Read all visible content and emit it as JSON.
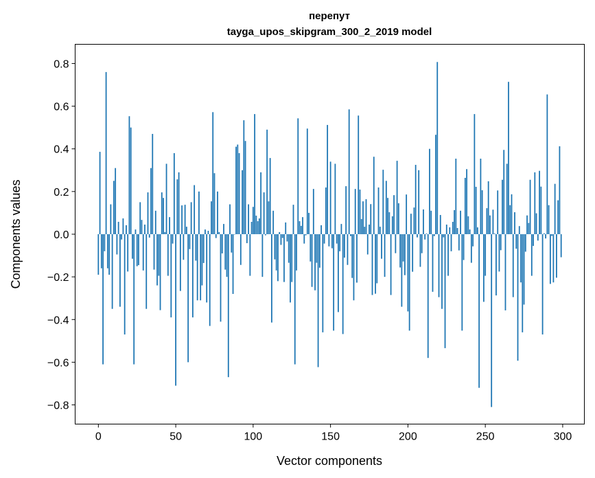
{
  "chart_data": {
    "type": "bar",
    "title": "перепут",
    "subtitle": "tayga_upos_skipgram_300_2_2019 model",
    "xlabel": "Vector components",
    "ylabel": "Components values",
    "xlim": [
      -15,
      314
    ],
    "ylim": [
      -0.89,
      0.89
    ],
    "xticks": [
      0,
      50,
      100,
      150,
      200,
      250,
      300
    ],
    "xtick_labels": [
      "0",
      "50",
      "100",
      "150",
      "200",
      "250",
      "300"
    ],
    "yticks": [
      -0.8,
      -0.6,
      -0.4,
      -0.2,
      0.0,
      0.2,
      0.4,
      0.6,
      0.8
    ],
    "ytick_labels": [
      "−0.8",
      "−0.6",
      "−0.4",
      "−0.2",
      "0.0",
      "0.2",
      "0.4",
      "0.6",
      "0.8"
    ],
    "grid": false,
    "bar_color": "#1f77b4",
    "values": [
      -0.19,
      0.386,
      -0.16,
      -0.61,
      -0.08,
      0.76,
      -0.16,
      -0.19,
      0.14,
      -0.35,
      0.25,
      0.31,
      -0.095,
      0.058,
      -0.34,
      -0.025,
      0.074,
      -0.47,
      0.042,
      -0.175,
      0.553,
      0.5,
      -0.115,
      -0.61,
      0.022,
      -0.15,
      -0.145,
      0.15,
      0.067,
      -0.17,
      0.045,
      -0.35,
      0.196,
      -0.016,
      0.31,
      0.47,
      -0.166,
      0.11,
      -0.24,
      -0.195,
      -0.356,
      0.196,
      0.17,
      0.01,
      0.33,
      -0.195,
      0.08,
      -0.39,
      -0.044,
      0.38,
      -0.71,
      0.257,
      0.29,
      -0.266,
      0.135,
      -0.12,
      0.138,
      0.035,
      -0.6,
      -0.07,
      0.15,
      -0.39,
      0.23,
      -0.124,
      -0.31,
      0.2,
      -0.31,
      -0.24,
      -0.135,
      0.022,
      -0.32,
      0.016,
      -0.43,
      0.154,
      0.572,
      0.286,
      -0.018,
      0.2,
      0.01,
      -0.41,
      -0.09,
      0.048,
      -0.166,
      -0.2,
      -0.67,
      0.14,
      -0.086,
      -0.28,
      0.0,
      0.41,
      0.42,
      0.38,
      -0.144,
      0.3,
      0.534,
      0.437,
      -0.042,
      0.14,
      -0.195,
      0.058,
      0.128,
      0.563,
      0.087,
      0.061,
      0.074,
      0.29,
      -0.2,
      0.196,
      -0.005,
      0.49,
      0.154,
      0.357,
      -0.414,
      0.11,
      -0.118,
      -0.17,
      -0.22,
      0.01,
      -0.05,
      -0.018,
      -0.224,
      0.055,
      -0.034,
      -0.134,
      -0.32,
      -0.224,
      0.138,
      -0.61,
      -0.17,
      0.543,
      0.061,
      0.039,
      0.08,
      -0.044,
      -0.005,
      0.495,
      0.1,
      -0.128,
      -0.247,
      0.212,
      -0.263,
      -0.134,
      -0.623,
      -0.157,
      0.042,
      -0.46,
      -0.044,
      0.219,
      0.512,
      -0.057,
      0.34,
      -0.066,
      -0.452,
      0.33,
      -0.044,
      -0.365,
      -0.08,
      0.048,
      -0.468,
      -0.11,
      0.225,
      -0.144,
      0.585,
      -0.009,
      -0.205,
      -0.31,
      0.212,
      -0.227,
      0.556,
      0.209,
      0.071,
      0.154,
      0.035,
      0.164,
      -0.095,
      0.045,
      0.141,
      -0.285,
      0.363,
      -0.279,
      -0.23,
      0.219,
      0.035,
      -0.115,
      0.302,
      -0.2,
      0.25,
      0.17,
      0.103,
      -0.285,
      0.084,
      0.183,
      -0.089,
      0.344,
      0.145,
      -0.156,
      -0.34,
      -0.128,
      -0.192,
      0.186,
      -0.362,
      -0.452,
      0.096,
      -0.176,
      0.125,
      0.325,
      -0.015,
      0.3,
      -0.153,
      -0.089,
      0.116,
      -0.025,
      0.003,
      -0.58,
      0.4,
      0.11,
      -0.27,
      -0.009,
      0.466,
      0.807,
      -0.295,
      0.09,
      -0.35,
      -0.015,
      -0.534,
      0.045,
      -0.195,
      0.032,
      -0.08,
      0.058,
      0.113,
      0.354,
      0.029,
      -0.076,
      0.11,
      -0.452,
      -0.121,
      0.264,
      0.305,
      0.084,
      0.022,
      -0.134,
      -0.057,
      0.563,
      0.222,
      0.032,
      -0.72,
      0.354,
      0.206,
      -0.317,
      -0.195,
      0.122,
      0.248,
      0.088,
      -0.81,
      0.115,
      0.003,
      -0.287,
      0.205,
      -0.175,
      -0.075,
      0.255,
      0.395,
      -0.357,
      0.33,
      0.714,
      0.136,
      0.187,
      -0.295,
      0.103,
      -0.068,
      -0.593,
      0.038,
      -0.226,
      -0.46,
      -0.33,
      -0.082,
      0.088,
      0.053,
      0.255,
      -0.195,
      -0.055,
      0.29,
      0.098,
      -0.03,
      0.297,
      0.223,
      -0.47,
      0.004,
      -0.02,
      0.655,
      0.136,
      -0.233,
      -0.008,
      -0.226,
      0.236,
      -0.204,
      0.159,
      0.412,
      -0.108
    ]
  }
}
